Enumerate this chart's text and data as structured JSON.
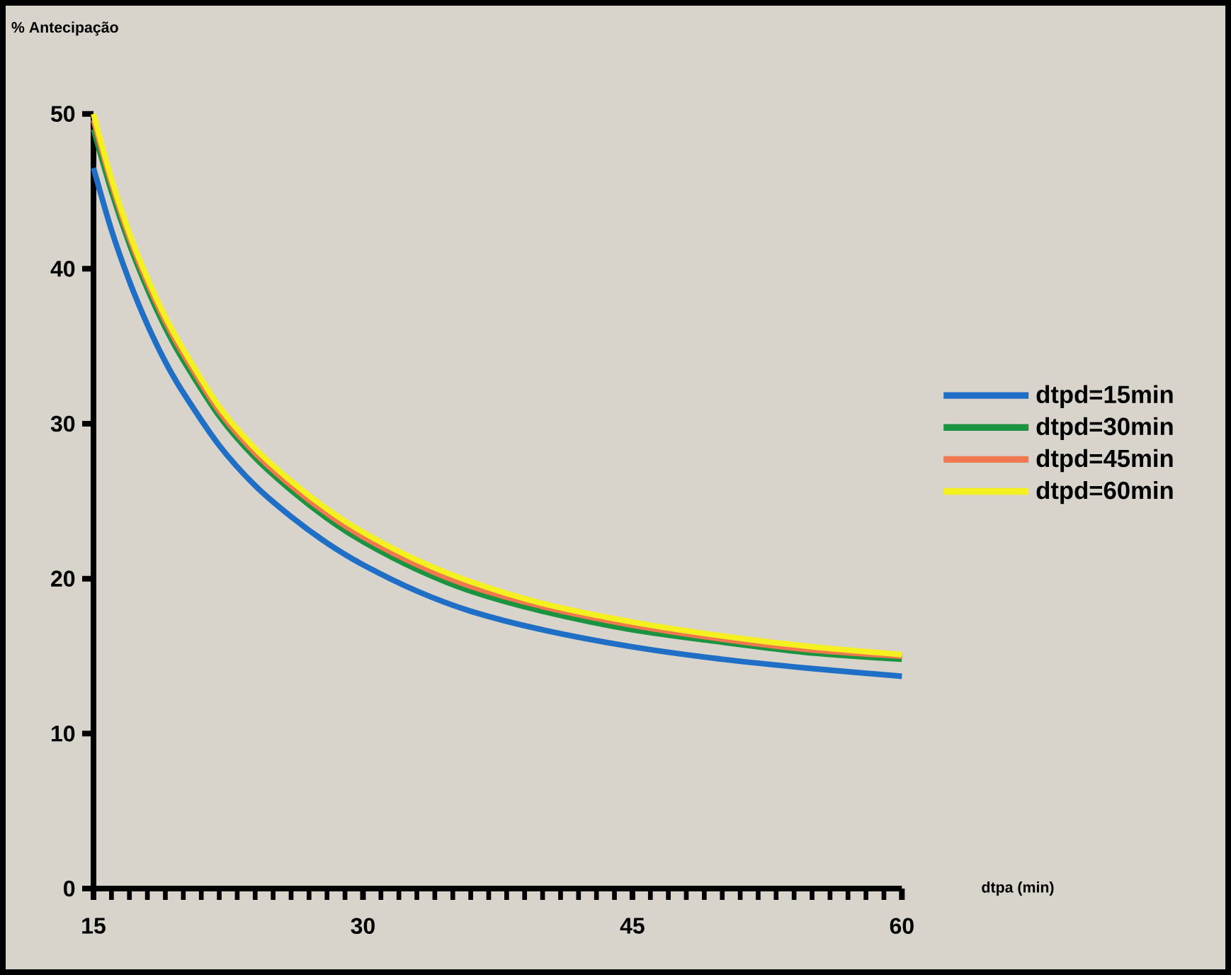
{
  "chart_data": {
    "type": "line",
    "xlabel": "dtpa (min)",
    "ylabel": "% Antecipação",
    "xlim": [
      15,
      60
    ],
    "ylim": [
      0,
      50
    ],
    "xticks": [
      15,
      30,
      45,
      60
    ],
    "yticks": [
      0,
      10,
      20,
      30,
      40,
      50
    ],
    "x": [
      15,
      16,
      17,
      18,
      19,
      20,
      22,
      24,
      26,
      28,
      30,
      33,
      36,
      40,
      45,
      50,
      55,
      60
    ],
    "legend": "right",
    "grid": false,
    "line_style": "solid",
    "series": [
      {
        "name": "dtpd=15min",
        "color": "#1f6fc6",
        "values": [
          46.5,
          42.5,
          39.2,
          36.4,
          34.0,
          32.0,
          28.6,
          26.0,
          24.0,
          22.3,
          20.9,
          19.2,
          17.9,
          16.7,
          15.6,
          14.8,
          14.2,
          13.7
        ]
      },
      {
        "name": "dtpd=30min",
        "color": "#1a9440",
        "values": [
          49.0,
          45.0,
          41.6,
          38.7,
          36.2,
          34.1,
          30.5,
          27.8,
          25.7,
          23.9,
          22.4,
          20.6,
          19.2,
          17.9,
          16.7,
          15.9,
          15.2,
          14.8
        ]
      },
      {
        "name": "dtpd=45min",
        "color": "#f07850",
        "values": [
          49.6,
          45.5,
          42.0,
          39.1,
          36.6,
          34.5,
          30.8,
          28.1,
          26.0,
          24.2,
          22.7,
          20.9,
          19.5,
          18.2,
          17.0,
          16.1,
          15.4,
          15.0
        ]
      },
      {
        "name": "dtpd=60min",
        "color": "#f5f020",
        "values": [
          50.0,
          45.8,
          42.3,
          39.4,
          36.9,
          34.8,
          31.1,
          28.4,
          26.3,
          24.5,
          23.0,
          21.2,
          19.8,
          18.4,
          17.2,
          16.3,
          15.6,
          15.1
        ]
      }
    ]
  }
}
